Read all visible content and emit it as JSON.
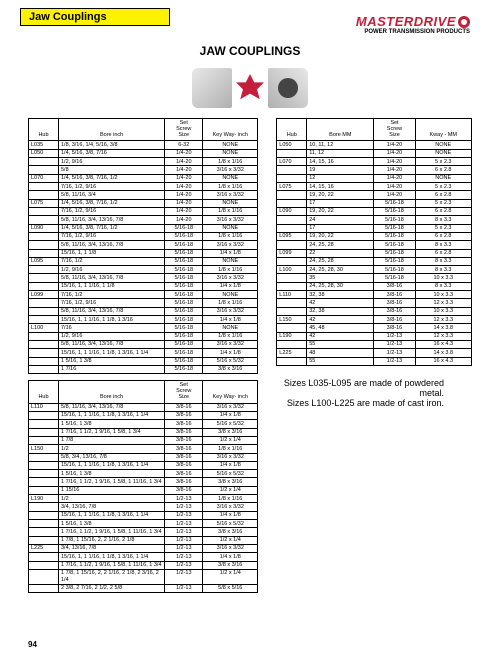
{
  "header": {
    "section": "Jaw Couplings"
  },
  "brand": {
    "name": "MASTERDRIVE",
    "reg": "®",
    "tagline": "POWER TRANSMISSION PRODUCTS"
  },
  "title": "JAW COUPLINGS",
  "pageNum": "94",
  "notes": {
    "l1": "Sizes L035-L095 are made of powdered metal.",
    "l2": "Sizes L100-L225 are made of cast iron."
  },
  "headers": {
    "hub": "Hub",
    "bore": "Bore inch",
    "screw": "Set\nScrew\nSize",
    "key": "Key Way- inch",
    "boreMM": "Bore MM",
    "keyMM": "Kway - MM"
  },
  "t1": [
    {
      "h": "L035",
      "b": "1/8, 3/16, 1/4, 5/16, 3/8",
      "s": "6-32",
      "k": "NONE"
    },
    {
      "h": "L050",
      "b": "1/4, 5/16, 3/8, 7/16",
      "s": "1/4-20",
      "k": "NONE"
    },
    {
      "h": "",
      "b": "1/2, 9/16",
      "s": "1/4-20",
      "k": "1/8  x  1/16"
    },
    {
      "h": "",
      "b": "5/8",
      "s": "1/4-20",
      "k": "3/16  x  3/32"
    },
    {
      "h": "L070",
      "b": "1/4, 5/16, 3/8, 7/16, 1/2",
      "s": "1/4-20",
      "k": "NONE"
    },
    {
      "h": "",
      "b": "7/16, 1/2, 9/16",
      "s": "1/4-20",
      "k": "1/8  x  1/16"
    },
    {
      "h": "",
      "b": "5/8, 11/16, 3/4",
      "s": "1/4-20",
      "k": "3/16  x  3/32"
    },
    {
      "h": "L075",
      "b": "1/4, 5/16, 3/8, 7/16, 1/2",
      "s": "1/4-20",
      "k": "NONE"
    },
    {
      "h": "",
      "b": "7/16, 1/2, 9/16",
      "s": "1/4-20",
      "k": "1/8  x  1/16"
    },
    {
      "h": "",
      "b": "5/8, 11/16, 3/4, 13/16, 7/8",
      "s": "1/4-20",
      "k": "3/16  x  3/32"
    },
    {
      "h": "L090",
      "b": "1/4, 5/16, 3/8, 7/16, 1/2",
      "s": "5/16-18",
      "k": "NONE"
    },
    {
      "h": "",
      "b": "7/16, 1/2, 9/16",
      "s": "5/16-18",
      "k": "1/8  x  1/16"
    },
    {
      "h": "",
      "b": "5/8, 11/16, 3/4, 13/16, 7/8",
      "s": "5/16-18",
      "k": "3/16  x  3/32"
    },
    {
      "h": "",
      "b": "15/16, 1, 1 1/8",
      "s": "5/16-18",
      "k": "1/4  x  1/8"
    },
    {
      "h": "L095",
      "b": "7/16, 1/2",
      "s": "5/16-18",
      "k": "NONE"
    },
    {
      "h": "",
      "b": "1/2, 9/16",
      "s": "5/16-18",
      "k": "1/8  x  1/16"
    },
    {
      "h": "",
      "b": "5/8, 11/16, 3/4, 13/16, 7/8",
      "s": "5/16-18",
      "k": "3/16  x  3/32"
    },
    {
      "h": "",
      "b": "15/16, 1, 1 1/16, 1 1/8",
      "s": "5/16-18",
      "k": "1/4  x  1/8"
    },
    {
      "h": "L099",
      "b": "7/16, 1/2",
      "s": "5/16-18",
      "k": "NONE"
    },
    {
      "h": "",
      "b": "7/16, 1/2, 9/16",
      "s": "5/16-18",
      "k": "1/8  x  1/16"
    },
    {
      "h": "",
      "b": "5/8, 11/16, 3/4, 13/16, 7/8",
      "s": "5/16-18",
      "k": "3/16  x  3/32"
    },
    {
      "h": "",
      "b": "15/16, 1, 1 1/16, 1 1/8, 1 3/16",
      "s": "5/16-18",
      "k": "1/4  x  1/8"
    },
    {
      "h": "L100",
      "b": "7/16",
      "s": "5/16-18",
      "k": "NONE"
    },
    {
      "h": "",
      "b": "1/2, 9/16",
      "s": "5/16-18",
      "k": "1/8  x  1/16"
    },
    {
      "h": "",
      "b": "5/8, 11/16, 3/4, 13/16, 7/8",
      "s": "5/16-18",
      "k": "3/16  x  3/32"
    },
    {
      "h": "",
      "b": "15/16, 1, 1 1/16, 1 1/8, 1 3/16, 1 1/4",
      "s": "5/16-18",
      "k": "1/4  x  1/8"
    },
    {
      "h": "",
      "b": "1 5/16, 1 3/8",
      "s": "5/16-18",
      "k": "5/16  x  5/32"
    },
    {
      "h": "",
      "b": "1 7/16",
      "s": "5/16-18",
      "k": "3/8  x  3/16"
    }
  ],
  "t2": [
    {
      "h": "L110",
      "b": "5/8, 11/16, 3/4, 13/16, 7/8",
      "s": "3/8-16",
      "k": "3/16  x  3/32"
    },
    {
      "h": "",
      "b": "15/16, 1, 1 1/16, 1 1/8, 1 3/16, 1 1/4",
      "s": "3/8-16",
      "k": "1/4  x  1/8"
    },
    {
      "h": "",
      "b": "1 5/16, 1 3/8",
      "s": "3/8-16",
      "k": "5/16  x  5/32"
    },
    {
      "h": "",
      "b": "1 7/16, 1 1/2, 1 9/16, 1 5/8, 1 3/4",
      "s": "3/8-16",
      "k": "3/8  x  3/16"
    },
    {
      "h": "",
      "b": "1 7/8",
      "s": "3/8-16",
      "k": "1/2  x  1/4"
    },
    {
      "h": "L150",
      "b": "1/2",
      "s": "3/8-16",
      "k": "1/8  x  1/16"
    },
    {
      "h": "",
      "b": "5/8, 3/4, 13/16, 7/8",
      "s": "3/8-16",
      "k": "3/16  x  3/32"
    },
    {
      "h": "",
      "b": "15/16, 1, 1 1/16, 1 1/8, 1 3/16, 1 1/4",
      "s": "3/8-16",
      "k": "1/4  x  1/8"
    },
    {
      "h": "",
      "b": "1 5/16, 1 3/8",
      "s": "3/8-16",
      "k": "5/16  x  5/32"
    },
    {
      "h": "",
      "b": "1 7/16, 1 1/2, 1 9/16, 1 5/8, 1 11/16, 1 3/4",
      "s": "3/8-16",
      "k": "3/8  x  3/16"
    },
    {
      "h": "",
      "b": "1 15/16",
      "s": "3/8-16",
      "k": "1/2  x  1/4"
    },
    {
      "h": "L190",
      "b": "1/2",
      "s": "1/2-13",
      "k": "1/8  x  1/16"
    },
    {
      "h": "",
      "b": "3/4, 13/16, 7/8",
      "s": "1/2-13",
      "k": "3/16  x  3/32"
    },
    {
      "h": "",
      "b": "15/16, 1, 1 1/16, 1 1/8, 1 3/16, 1 1/4",
      "s": "1/2-13",
      "k": "1/4  x  1/8"
    },
    {
      "h": "",
      "b": "1 5/16, 1 3/8",
      "s": "1/2-13",
      "k": "5/16  x  5/32"
    },
    {
      "h": "",
      "b": "1 7/16, 1 1/2, 1 9/16, 1 5/8, 1 11/16, 1 3/4",
      "s": "1/2-13",
      "k": "3/8  x  3/16"
    },
    {
      "h": "",
      "b": "1 7/8, 1 15/16, 2, 2 1/16, 2 1/8",
      "s": "1/2-13",
      "k": "1/2  x  1/4"
    },
    {
      "h": "L225",
      "b": "3/4, 13/16, 7/8",
      "s": "1/2-13",
      "k": "3/16  x  3/32"
    },
    {
      "h": "",
      "b": "15/16, 1, 1 1/16, 1 1/8, 1 3/16, 1 1/4",
      "s": "1/2-13",
      "k": "1/4  x  1/8"
    },
    {
      "h": "",
      "b": "1 7/16, 1 1/2, 1 9/16, 1 5/8, 1 11/16, 1 3/4",
      "s": "1/2-13",
      "k": "3/8  x  3/16"
    },
    {
      "h": "",
      "b": "1 7/8, 1 15/16, 2, 2 1/16, 2 1/8, 2 3/16, 2 1/4",
      "s": "1/2-13",
      "k": "1/2  x  1/4"
    },
    {
      "h": "",
      "b": "2 3/8, 2 7/16, 2 1/2, 2 5/8",
      "s": "1/2-13",
      "k": "5/8  x  5/16"
    }
  ],
  "t3": [
    {
      "h": "L050",
      "b": "10, 11, 12",
      "s": "1/4-20",
      "k": "NONE"
    },
    {
      "h": "",
      "b": "11, 12",
      "s": "1/4-20",
      "k": "NONE"
    },
    {
      "h": "L070",
      "b": "14, 15, 16",
      "s": "1/4-20",
      "k": "5 x 2.3"
    },
    {
      "h": "",
      "b": "19",
      "s": "1/4-20",
      "k": "6 x 2.8"
    },
    {
      "h": "",
      "b": "12",
      "s": "1/4-20",
      "k": "NONE"
    },
    {
      "h": "L075",
      "b": "14, 15, 16",
      "s": "1/4-20",
      "k": "5 x 2.3"
    },
    {
      "h": "",
      "b": "19, 20, 22",
      "s": "1/4-20",
      "k": "6 x 2.8"
    },
    {
      "h": "",
      "b": "17",
      "s": "5/16-18",
      "k": "5 x 2.3"
    },
    {
      "h": "L090",
      "b": "19, 20, 22",
      "s": "5/16-18",
      "k": "6 x 2.8"
    },
    {
      "h": "",
      "b": "24",
      "s": "5/16-18",
      "k": "8 x 3.3"
    },
    {
      "h": "",
      "b": "17",
      "s": "5/16-18",
      "k": "5 x 2.3"
    },
    {
      "h": "L095",
      "b": "19, 20, 22",
      "s": "5/16-18",
      "k": "6 x 2.8"
    },
    {
      "h": "",
      "b": "24, 25, 28",
      "s": "5/16-18",
      "k": "8 x 3.3"
    },
    {
      "h": "L099",
      "b": "22",
      "s": "5/16-18",
      "k": "6 x 2.8"
    },
    {
      "h": "",
      "b": "24, 25, 28",
      "s": "5/16-18",
      "k": "8 x 3.3"
    },
    {
      "h": "L100",
      "b": "24, 25, 28, 30",
      "s": "5/16-18",
      "k": "8 x 3.3"
    },
    {
      "h": "",
      "b": "35",
      "s": "5/16-18",
      "k": "10 x 3.3"
    },
    {
      "h": "",
      "b": "24, 25, 28, 30",
      "s": "3/8-16",
      "k": "8 x 3.3"
    },
    {
      "h": "L110",
      "b": "32, 38",
      "s": "3/8-16",
      "k": "10 x 3.3"
    },
    {
      "h": "",
      "b": "42",
      "s": "3/8-16",
      "k": "12 x 3.3"
    },
    {
      "h": "",
      "b": "32, 38",
      "s": "3/8-16",
      "k": "10 x 3.3"
    },
    {
      "h": "L150",
      "b": "42",
      "s": "3/8-16",
      "k": "12 x 3.3"
    },
    {
      "h": "",
      "b": "45, 48",
      "s": "3/8-16",
      "k": "14 x 3.8"
    },
    {
      "h": "L190",
      "b": "42",
      "s": "1/2-13",
      "k": "12 x 3.3"
    },
    {
      "h": "",
      "b": "55",
      "s": "1/2-13",
      "k": "16 x 4.3"
    },
    {
      "h": "L225",
      "b": "48",
      "s": "1/2-13",
      "k": "14 x 3.8"
    },
    {
      "h": "",
      "b": "55",
      "s": "1/2-13",
      "k": "16 x 4.3"
    }
  ]
}
